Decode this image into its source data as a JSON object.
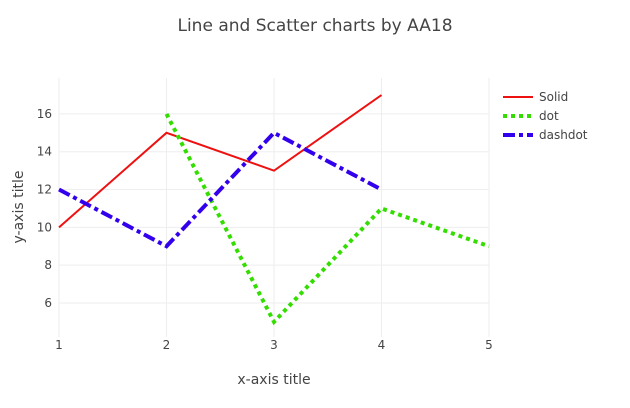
{
  "chart_data": {
    "type": "line",
    "title": "Line and Scatter charts by AA18",
    "xlabel": "x-axis title",
    "ylabel": "y-axis title",
    "xlim": [
      1,
      5
    ],
    "ylim": [
      4.2,
      17.9
    ],
    "x_ticks": [
      1,
      2,
      3,
      4,
      5
    ],
    "y_ticks": [
      6,
      8,
      10,
      12,
      14,
      16
    ],
    "grid": true,
    "legend_position": "top-right",
    "series": [
      {
        "name": "Solid",
        "dash": "solid",
        "color": "#ee1111",
        "x": [
          1,
          2,
          3,
          4
        ],
        "y": [
          10,
          15,
          13,
          17
        ]
      },
      {
        "name": "dot",
        "dash": "dot",
        "color": "#33dd00",
        "x": [
          2,
          3,
          4,
          5
        ],
        "y": [
          16,
          5,
          11,
          9
        ]
      },
      {
        "name": "dashdot",
        "dash": "dashdot",
        "color": "#3300ee",
        "x": [
          1,
          2,
          3,
          4
        ],
        "y": [
          12,
          9,
          15,
          12
        ]
      }
    ]
  }
}
